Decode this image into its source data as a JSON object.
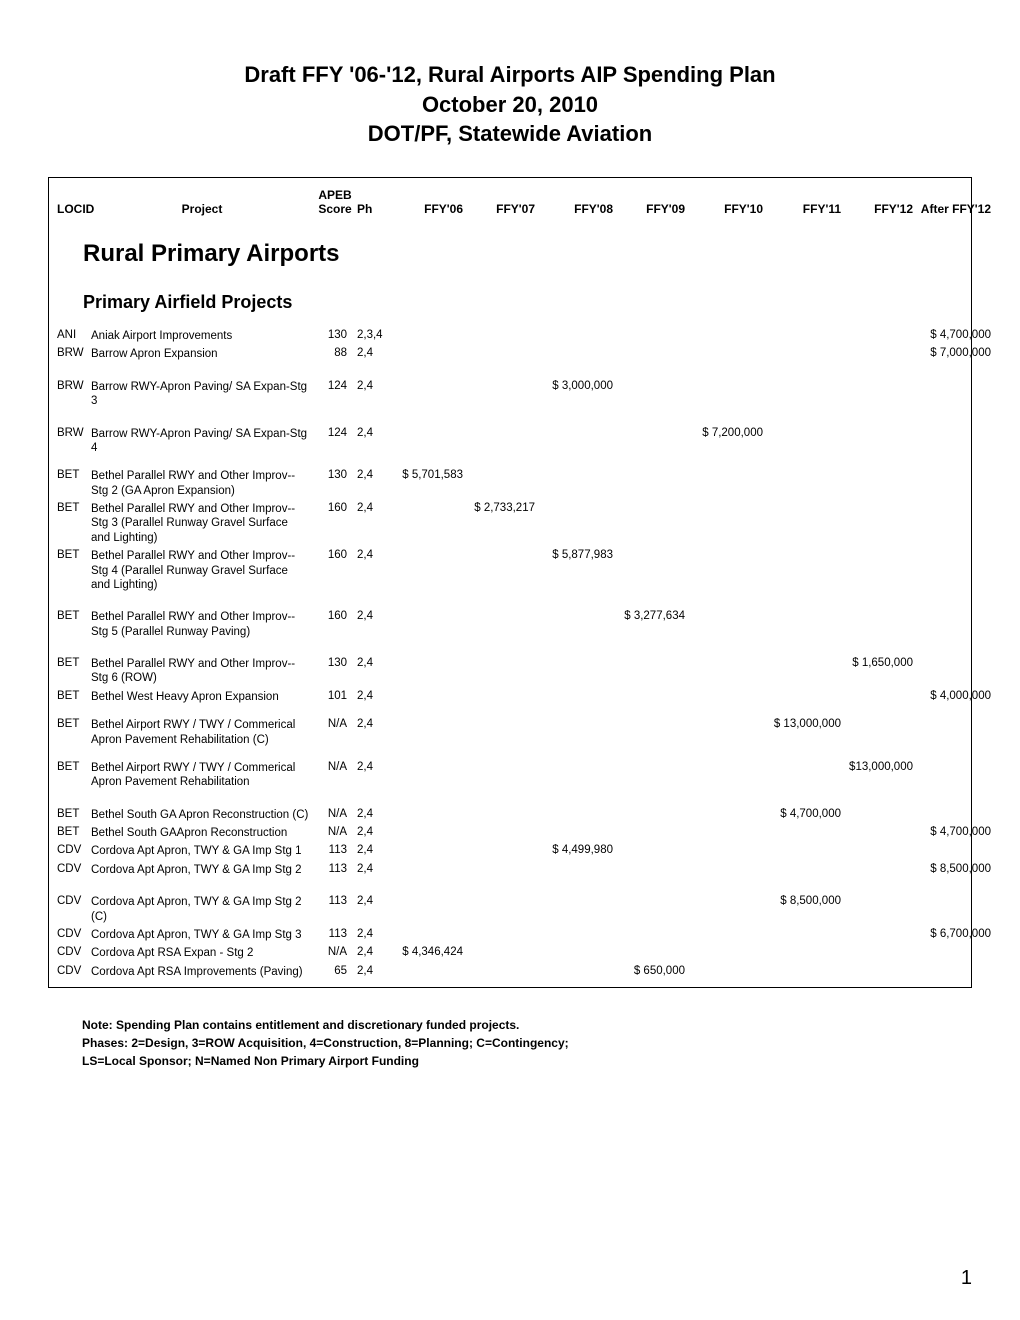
{
  "title": {
    "line1": "Draft FFY '06-'12, Rural Airports AIP Spending Plan",
    "line2": "October 20, 2010",
    "line3": "DOT/PF, Statewide Aviation"
  },
  "columns": {
    "locid": "LOCID",
    "project": "Project",
    "score_line1": "APEB",
    "score_line2": "Score",
    "ph": "Ph",
    "y06": "FFY'06",
    "y07": "FFY'07",
    "y08": "FFY'08",
    "y09": "FFY'09",
    "y10": "FFY'10",
    "y11": "FFY'11",
    "y12": "FFY'12",
    "after": "After FFY'12"
  },
  "sections": {
    "h1": "Rural Primary Airports",
    "h2": "Primary Airfield Projects"
  },
  "rows": [
    {
      "locid": "ANI",
      "project": "Aniak Airport Improvements",
      "score": "130",
      "ph": "2,3,4",
      "after": "$   4,700,000"
    },
    {
      "locid": "BRW",
      "project": "Barrow Apron Expansion",
      "score": "88",
      "ph": "2,4",
      "after": "$   7,000,000"
    },
    {
      "gap": true
    },
    {
      "locid": "BRW",
      "project": "Barrow RWY-Apron Paving/ SA Expan-Stg 3",
      "score": "124",
      "ph": "2,4",
      "y08": "$      3,000,000"
    },
    {
      "gap": true
    },
    {
      "locid": "BRW",
      "project": "Barrow RWY-Apron Paving/ SA Expan-Stg 4",
      "score": "124",
      "ph": "2,4",
      "y10": "$      7,200,000"
    },
    {
      "gapsm": true
    },
    {
      "locid": "BET",
      "project": "Bethel Parallel RWY and Other Improv--Stg 2 (GA Apron Expansion)",
      "score": "130",
      "ph": "2,4",
      "y06": "$     5,701,583"
    },
    {
      "locid": "BET",
      "project": "Bethel Parallel RWY and Other Improv--Stg 3 (Parallel Runway Gravel Surface and Lighting)",
      "score": "160",
      "ph": "2,4",
      "y07": "$   2,733,217"
    },
    {
      "locid": "BET",
      "project": "Bethel Parallel RWY and Other Improv--Stg 4 (Parallel Runway Gravel Surface and Lighting)",
      "score": "160",
      "ph": "2,4",
      "y08": "$      5,877,983"
    },
    {
      "gap": true
    },
    {
      "locid": "BET",
      "project": "Bethel Parallel RWY and Other Improv--Stg 5 (Parallel Runway Paving)",
      "score": "160",
      "ph": "2,4",
      "y09": "$    3,277,634"
    },
    {
      "gap": true
    },
    {
      "locid": "BET",
      "project": "Bethel Parallel RWY and Other Improv--Stg 6 (ROW)",
      "score": "130",
      "ph": "2,4",
      "y12": "$  1,650,000"
    },
    {
      "locid": "BET",
      "project": "Bethel West Heavy Apron Expansion",
      "score": "101",
      "ph": "2,4",
      "after": "$   4,000,000"
    },
    {
      "gapsm": true
    },
    {
      "locid": "BET",
      "project": "Bethel Airport RWY / TWY / Commerical Apron Pavement Rehabilitation (C)",
      "score": "N/A",
      "ph": "2,4",
      "y11": "$  13,000,000"
    },
    {
      "gapsm": true
    },
    {
      "locid": "BET",
      "project": "Bethel Airport RWY / TWY / Commerical Apron Pavement Rehabilitation",
      "score": "N/A",
      "ph": "2,4",
      "y12": "$13,000,000"
    },
    {
      "gap": true
    },
    {
      "locid": "BET",
      "project": "Bethel South GA Apron Reconstruction (C)",
      "score": "N/A",
      "ph": "2,4",
      "y11": "$    4,700,000"
    },
    {
      "locid": "BET",
      "project": "Bethel South GAApron Reconstruction",
      "score": "N/A",
      "ph": "2,4",
      "after": "$   4,700,000"
    },
    {
      "locid": "CDV",
      "project": "Cordova Apt Apron, TWY & GA Imp  Stg 1",
      "score": "113",
      "ph": "2,4",
      "y08": "$      4,499,980"
    },
    {
      "locid": "CDV",
      "project": "Cordova Apt Apron, TWY & GA Imp Stg 2",
      "score": "113",
      "ph": "2,4",
      "after": "$   8,500,000"
    },
    {
      "gap": true
    },
    {
      "locid": "CDV",
      "project": "Cordova Apt Apron, TWY & GA Imp Stg 2 (C)",
      "score": "113",
      "ph": "2,4",
      "y11": "$    8,500,000"
    },
    {
      "locid": "CDV",
      "project": "Cordova Apt Apron, TWY & GA Imp Stg 3",
      "score": "113",
      "ph": "2,4",
      "after": "$   6,700,000"
    },
    {
      "locid": "CDV",
      "project": "Cordova Apt RSA Expan - Stg 2",
      "score": "N/A",
      "ph": "2,4",
      "y06": "$     4,346,424"
    },
    {
      "locid": "CDV",
      "project": "Cordova Apt RSA Improvements (Paving)",
      "score": "65",
      "ph": "2,4",
      "y09": "$       650,000"
    }
  ],
  "notes": {
    "l1": "Note:  Spending Plan contains entitlement and   discretionary funded projects.",
    "l2": "Phases: 2=Design, 3=ROW Acquisition, 4=Construction, 8=Planning; C=Contingency;",
    "l3": "LS=Local Sponsor; N=Named Non Primary Airport Funding"
  },
  "pagenum": "1"
}
